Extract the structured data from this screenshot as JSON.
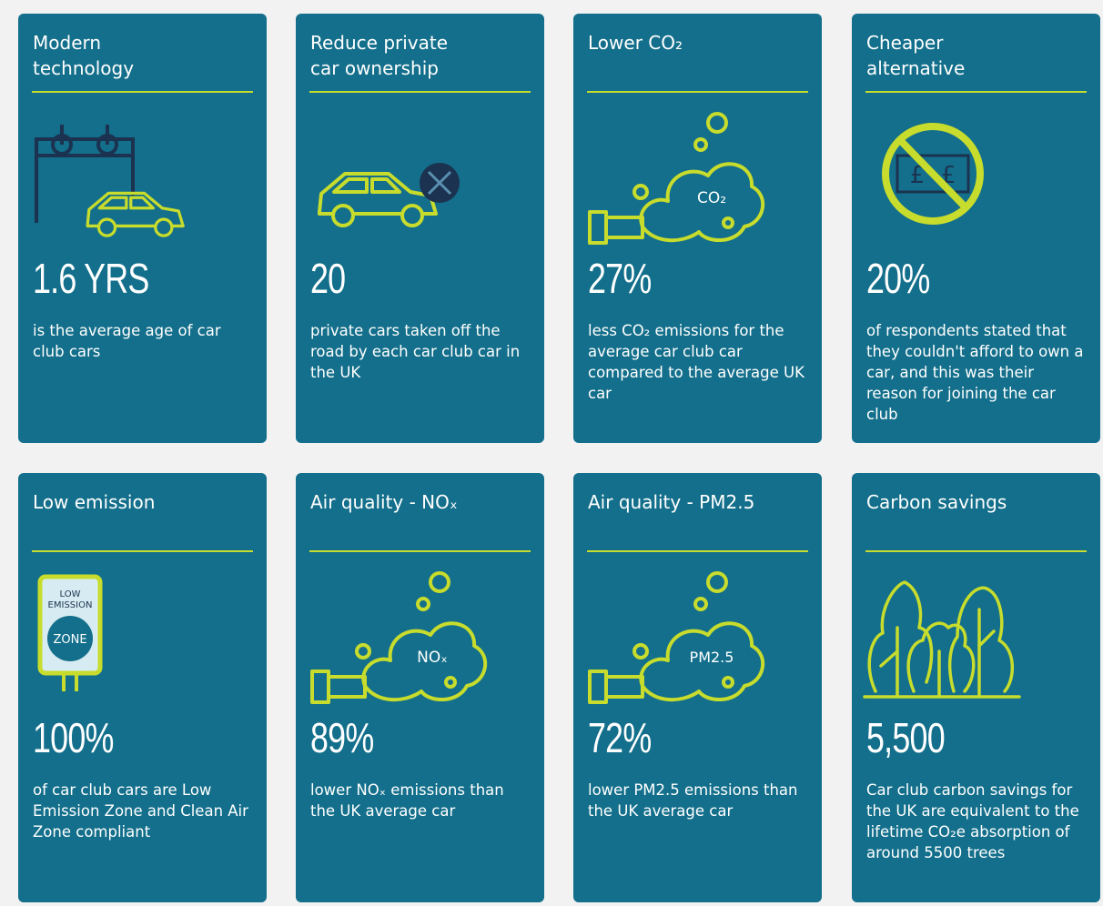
{
  "cards": [
    {
      "title": "Modern\ntechnology",
      "stat": "1.6 YRS",
      "description": "is the average age of car club cars"
    },
    {
      "title": "Reduce private\ncar ownership",
      "stat": "20",
      "description": "private cars taken off the road by each car club car in the UK"
    },
    {
      "title": "Lower CO₂",
      "icon_label": "CO₂",
      "stat": "27%",
      "description": "less CO₂ emissions for the average car club car compared to the average UK car"
    },
    {
      "title": "Cheaper\nalternative",
      "icon_labels": [
        "£",
        "£"
      ],
      "stat": "20%",
      "description": "of respondents stated that they couldn't afford to own a car, and this was their reason for joining the car club"
    },
    {
      "title": "Low emission",
      "icon_labels": [
        "LOW",
        "EMISSION",
        "ZONE"
      ],
      "stat": "100%",
      "description": "of car club cars are Low Emission Zone and Clean Air Zone compliant"
    },
    {
      "title": "Air quality - NOₓ",
      "icon_label": "NOₓ",
      "stat": "89%",
      "description": "lower NOₓ emissions than the UK average car"
    },
    {
      "title": "Air quality - PM2.5",
      "icon_label": "PM2.5",
      "stat": "72%",
      "description": "lower PM2.5 emissions than the UK average car"
    },
    {
      "title": "Carbon savings",
      "stat": "5,500",
      "description": "Car club carbon savings for the UK are equivalent to the lifetime CO₂e absorption of around 5500 trees"
    }
  ]
}
